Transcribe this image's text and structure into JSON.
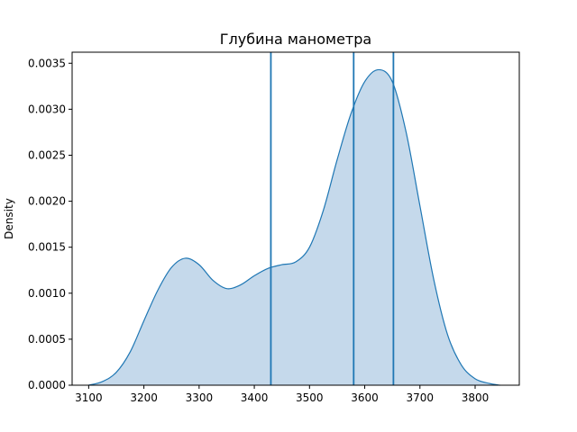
{
  "chart_data": {
    "type": "area",
    "title": "Глубина манометра",
    "xlabel": "",
    "ylabel": "Density",
    "xlim": [
      3070,
      3880
    ],
    "ylim": [
      0,
      0.00362
    ],
    "xticks": [
      3100,
      3200,
      3300,
      3400,
      3500,
      3600,
      3700,
      3800
    ],
    "yticks": [
      0.0,
      0.0005,
      0.001,
      0.0015,
      0.002,
      0.0025,
      0.003,
      0.0035
    ],
    "ytick_labels": [
      "0.0000",
      "0.0005",
      "0.0010",
      "0.0015",
      "0.0020",
      "0.0025",
      "0.0030",
      "0.0035"
    ],
    "grid": false,
    "color": "#1f77b4",
    "fill_color": "#c5d9eb",
    "series": [
      {
        "x": [
          3100,
          3125,
          3150,
          3175,
          3200,
          3225,
          3250,
          3275,
          3300,
          3325,
          3350,
          3375,
          3400,
          3425,
          3450,
          3475,
          3500,
          3525,
          3550,
          3575,
          3600,
          3625,
          3650,
          3675,
          3700,
          3725,
          3750,
          3775,
          3800,
          3825,
          3845
        ],
        "values": [
          0.0,
          4e-05,
          0.00014,
          0.00036,
          0.0007,
          0.00103,
          0.00128,
          0.00138,
          0.00131,
          0.00114,
          0.00105,
          0.00109,
          0.00119,
          0.00127,
          0.00131,
          0.00134,
          0.0015,
          0.0019,
          0.00245,
          0.00295,
          0.0033,
          0.00343,
          0.0033,
          0.00275,
          0.00195,
          0.00115,
          0.00055,
          0.00022,
          7e-05,
          2e-05,
          0.0
        ]
      }
    ],
    "vlines": [
      3430,
      3580,
      3652
    ]
  }
}
